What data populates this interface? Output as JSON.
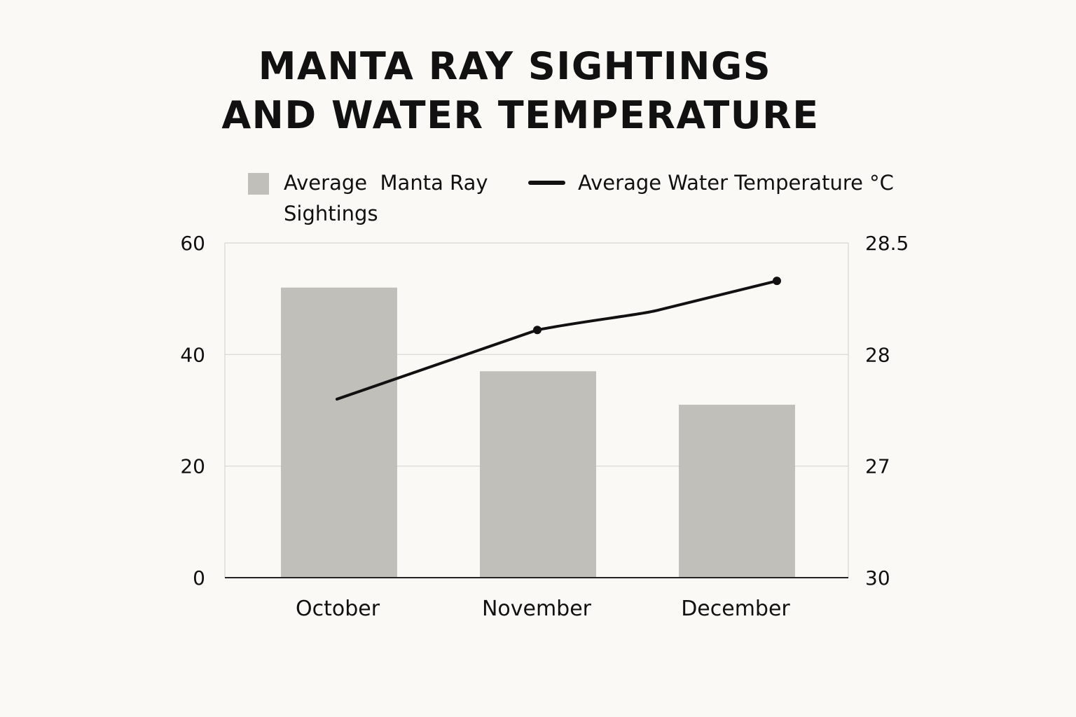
{
  "chart_data": {
    "type": "bar",
    "title_lines": [
      "MANTA RAY SIGHTINGS",
      "AND WATER TEMPERATURE"
    ],
    "categories": [
      "October",
      "November",
      "December"
    ],
    "series": [
      {
        "name_lines": [
          "Average  Manta Ray",
          "Sightings"
        ],
        "type": "bar",
        "axis": "left",
        "values": [
          52,
          37,
          31
        ]
      },
      {
        "name_lines": [
          "Average Water Temperature °C"
        ],
        "type": "line",
        "axis": "right",
        "values": [
          27.8,
          28.11,
          28.33
        ]
      }
    ],
    "y_left": {
      "range": [
        0,
        60
      ],
      "ticks": [
        0,
        20,
        40,
        60
      ],
      "tick_labels": [
        "0",
        "20",
        "40",
        "60"
      ]
    },
    "y_right": {
      "tick_labels": [
        "30",
        "27",
        "28",
        "28.5"
      ]
    },
    "grid": true,
    "legend": "top",
    "colors": {
      "bar": "#c0bfba",
      "line": "#111111",
      "grid": "#d6d6d2",
      "axis": "#222222",
      "background": "#faf9f5"
    }
  }
}
